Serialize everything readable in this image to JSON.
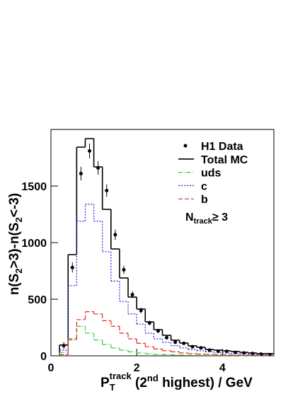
{
  "chart_data": {
    "type": "histogram",
    "xlabel_parts": [
      "P",
      "T",
      "track",
      " (2",
      "nd",
      " highest)  / GeV"
    ],
    "ylabel_parts": [
      "n(S",
      "2",
      ">3)-n(S",
      "2",
      "<-3)"
    ],
    "annotation_parts": [
      "N",
      "track",
      "≥ 3"
    ],
    "bins": [
      0.2,
      0.4,
      0.6,
      0.8,
      1.0,
      1.2,
      1.4,
      1.6,
      1.8,
      2.0,
      2.2,
      2.4,
      2.6,
      2.8,
      3.0,
      3.2,
      3.4,
      3.6,
      3.8,
      4.0,
      4.2,
      4.4,
      4.6,
      4.8,
      5.0,
      5.2
    ],
    "series": [
      {
        "name": "H1 Data",
        "color": "#000000",
        "style": "points",
        "values": [
          90,
          780,
          1610,
          1810,
          1660,
          1460,
          1070,
          760,
          540,
          400,
          290,
          220,
          160,
          120,
          110,
          80,
          70,
          50,
          40,
          40,
          30,
          25,
          20,
          15,
          10
        ],
        "errors": [
          30,
          45,
          60,
          65,
          60,
          55,
          45,
          35,
          30,
          25,
          20,
          18,
          15,
          13,
          12,
          10,
          9,
          8,
          7,
          7,
          6,
          6,
          5,
          5,
          4
        ]
      },
      {
        "name": "Total MC",
        "color": "#000000",
        "style": "solid",
        "values": [
          95,
          894,
          1844,
          1919,
          1669,
          1294,
          944,
          688,
          519,
          413,
          300,
          231,
          181,
          138,
          113,
          88,
          75,
          56,
          50,
          44,
          38,
          31,
          25,
          19,
          19
        ]
      },
      {
        "name": "uds",
        "color": "#33cc33",
        "style": "dashdot",
        "values": [
          30,
          140,
          260,
          200,
          140,
          100,
          70,
          50,
          35,
          25,
          18,
          12,
          10,
          8,
          6,
          5,
          4,
          3,
          3,
          2,
          2,
          1,
          1,
          1,
          1
        ]
      },
      {
        "name": "c",
        "color": "#2222dd",
        "style": "dotted",
        "values": [
          50,
          620,
          1190,
          1340,
          1190,
          920,
          660,
          480,
          370,
          280,
          200,
          150,
          120,
          90,
          70,
          55,
          45,
          35,
          30,
          25,
          20,
          18,
          14,
          10,
          10
        ]
      },
      {
        "name": "b",
        "color": "#ee2222",
        "style": "dashed",
        "values": [
          10,
          150,
          320,
          390,
          370,
          310,
          260,
          200,
          150,
          110,
          80,
          60,
          45,
          35,
          25,
          20,
          15,
          12,
          10,
          8,
          6,
          5,
          4,
          3,
          2
        ]
      }
    ],
    "xlim": [
      0,
      5.2
    ],
    "xticks": [
      0,
      2,
      4
    ],
    "ylim": [
      0,
      2000
    ],
    "yticks": [
      0,
      500,
      1000,
      1500
    ]
  }
}
